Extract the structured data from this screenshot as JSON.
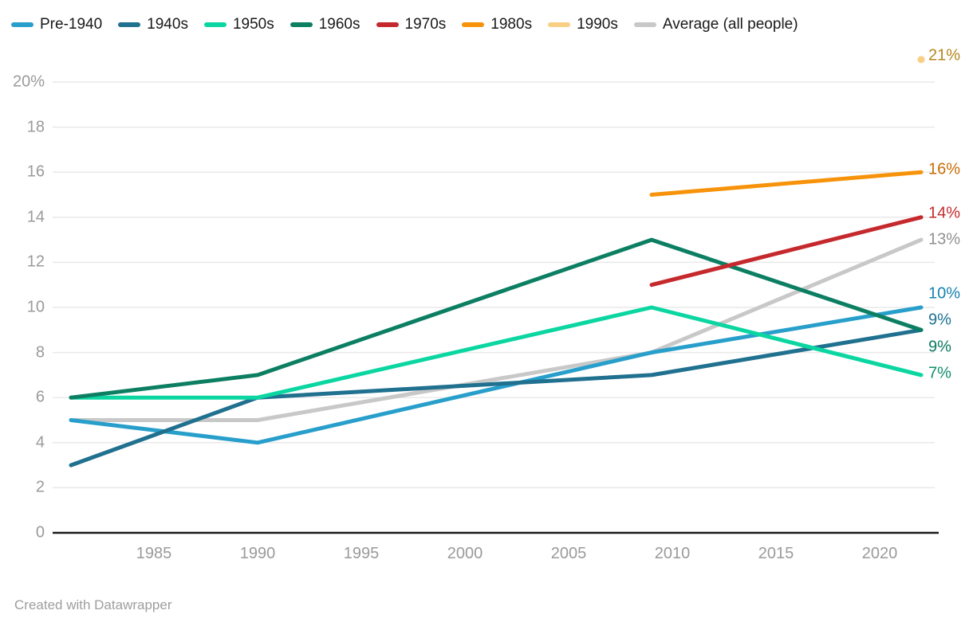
{
  "legend": {
    "items": [
      {
        "label": "Pre-1940",
        "color": "#289fcb"
      },
      {
        "label": "1940s",
        "color": "#20708f"
      },
      {
        "label": "1950s",
        "color": "#0bd6a2"
      },
      {
        "label": "1960s",
        "color": "#0c7f63"
      },
      {
        "label": "1970s",
        "color": "#c5292d"
      },
      {
        "label": "1980s",
        "color": "#f7930a"
      },
      {
        "label": "1990s",
        "color": "#f9cf85"
      },
      {
        "label": "Average (all people)",
        "color": "#c8c8c8"
      }
    ]
  },
  "footer": {
    "credit": "Created with Datawrapper"
  },
  "chart_data": {
    "type": "line",
    "title": "",
    "xlabel": "",
    "ylabel": "",
    "x_range": [
      1981,
      2022
    ],
    "y_range": [
      0,
      20
    ],
    "grid": true,
    "legend_position": "top",
    "x_ticks": [
      1985,
      1990,
      1995,
      2000,
      2005,
      2010,
      2015,
      2020
    ],
    "x_tick_labels": [
      "1985",
      "1990",
      "1995",
      "2000",
      "2005",
      "2010",
      "2015",
      "2020"
    ],
    "y_ticks": [
      0,
      2,
      4,
      6,
      8,
      10,
      12,
      14,
      16,
      18,
      20
    ],
    "y_tick_labels": [
      "0",
      "2",
      "4",
      "6",
      "8",
      "10",
      "12",
      "14",
      "16",
      "18",
      "20%"
    ],
    "series": [
      {
        "name": "Average (all people)",
        "color": "#c8c8c8",
        "label_color": "#909090",
        "x": [
          1981,
          1990,
          2009,
          2022
        ],
        "values": [
          5,
          5,
          8,
          13
        ],
        "end_label": "13%",
        "label_dy": 0
      },
      {
        "name": "Pre-1940",
        "color": "#289fcb",
        "label_color": "#1583b0",
        "x": [
          1981,
          1990,
          2009,
          2022
        ],
        "values": [
          5,
          4,
          8,
          10
        ],
        "end_label": "10%",
        "label_dy": -17
      },
      {
        "name": "1940s",
        "color": "#20708f",
        "label_color": "#1d7292",
        "x": [
          1981,
          1990,
          2009,
          2022
        ],
        "values": [
          3,
          6,
          7,
          9
        ],
        "end_label": "9%",
        "label_dy": -12
      },
      {
        "name": "1950s",
        "color": "#0bd6a2",
        "label_color": "#0f8f6a",
        "x": [
          1981,
          1990,
          2009,
          2022
        ],
        "values": [
          6,
          6,
          10,
          7
        ],
        "end_label": "7%",
        "label_dy": -2
      },
      {
        "name": "1960s",
        "color": "#0c7f63",
        "label_color": "#0b7a5f",
        "x": [
          1981,
          1990,
          2009,
          2022
        ],
        "values": [
          6,
          7,
          13,
          9
        ],
        "end_label": "9%",
        "label_dy": 22
      },
      {
        "name": "1970s",
        "color": "#c5292d",
        "label_color": "#c5292d",
        "x": [
          2009,
          2022
        ],
        "values": [
          11,
          14
        ],
        "end_label": "14%",
        "label_dy": -5
      },
      {
        "name": "1980s",
        "color": "#f7930a",
        "label_color": "#c86d06",
        "x": [
          2009,
          2022
        ],
        "values": [
          15,
          16
        ],
        "end_label": "16%",
        "label_dy": -3
      },
      {
        "name": "1990s",
        "color": "#f9cf85",
        "label_color": "#b3871c",
        "x": [
          2022
        ],
        "values": [
          21
        ],
        "end_label": "21%",
        "label_dy": -5,
        "point_only": true
      }
    ]
  }
}
